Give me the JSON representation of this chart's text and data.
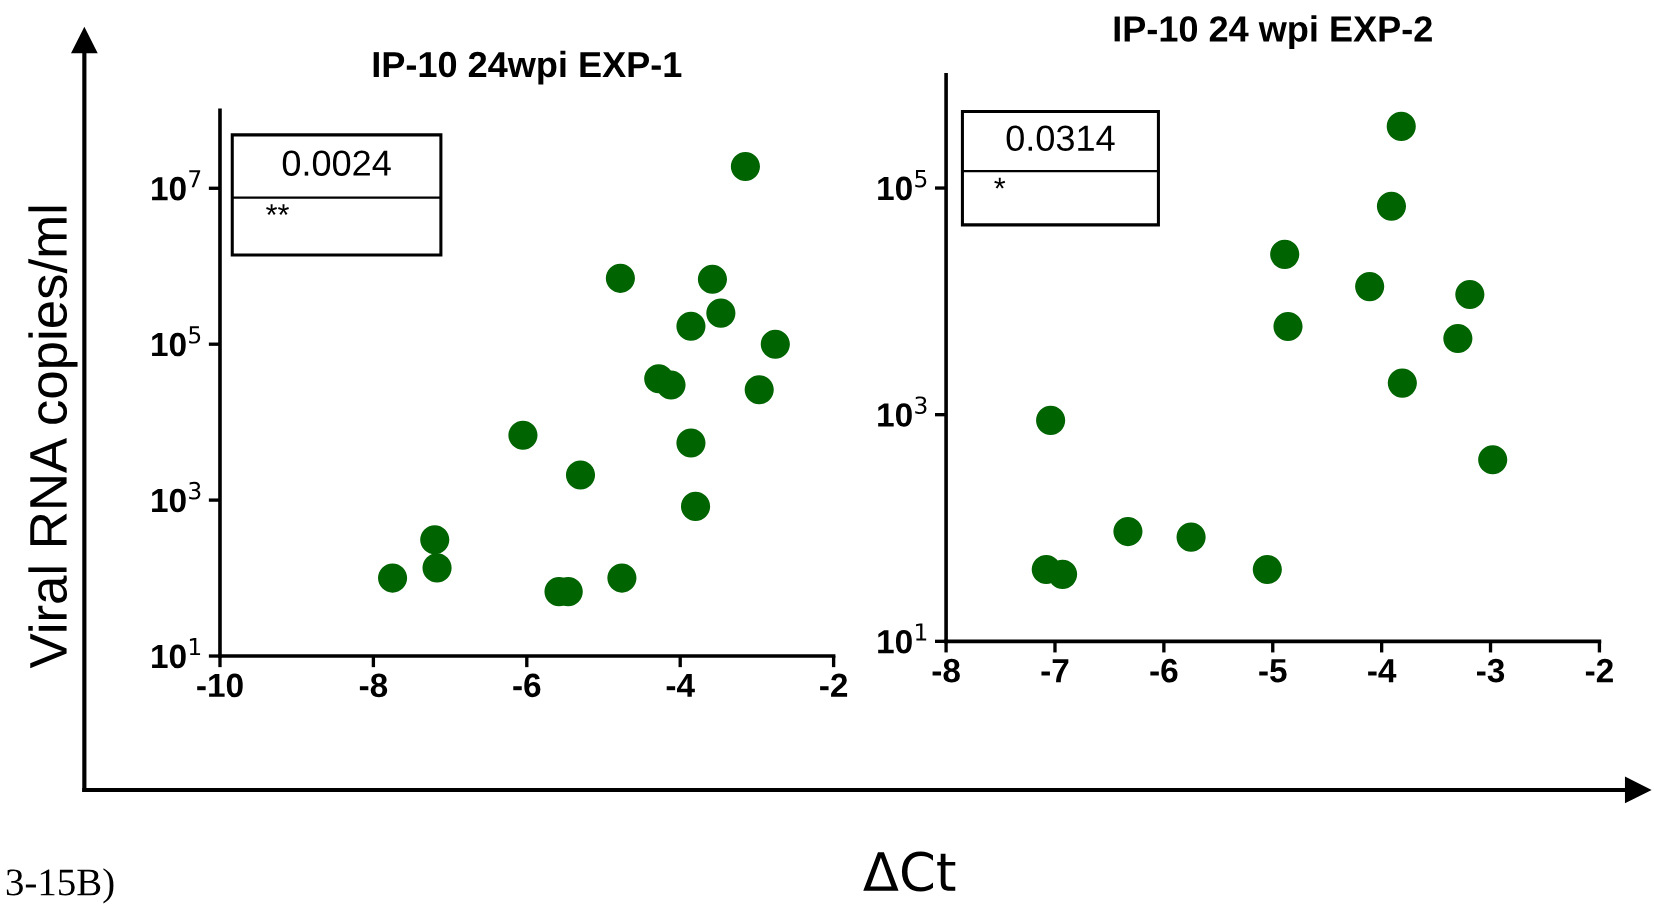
{
  "chart_data": [
    {
      "type": "scatter",
      "title": "IP-10 24wpi EXP-1",
      "ylabel": "Viral RNA copies/ml",
      "log": "y",
      "marker": "circle",
      "grid": false,
      "xlim": [
        -10,
        -2
      ],
      "xticks": [
        -10,
        -8,
        -6,
        -4,
        -2
      ],
      "ylim": [
        10,
        100000000
      ],
      "yticks": [
        {
          "value": 10,
          "label": "10$^{1}$"
        },
        {
          "value": 1000,
          "label": "10$^{3}$"
        },
        {
          "value": 100000,
          "label": "10$^{5}$"
        },
        {
          "value": 10000000,
          "label": "10$^{7}$"
        }
      ],
      "series": [
        {
          "color": "#006400",
          "x": [
            -3.15,
            -4.78,
            -3.58,
            -3.47,
            -3.86,
            -2.76,
            -4.28,
            -4.12,
            -2.97,
            -6.05,
            -3.86,
            -5.3,
            -3.8,
            -7.2,
            -7.17,
            -7.75,
            -5.58,
            -5.46,
            -4.76
          ],
          "values": [
            19000000,
            700000,
            680000,
            250000,
            170000,
            100000,
            36000,
            30000,
            26000,
            6800,
            5400,
            2100,
            830,
            310,
            135,
            100,
            67,
            67,
            100
          ]
        }
      ],
      "annotations": [
        "0.0024",
        "**",
        "3-15B)"
      ]
    },
    {
      "type": "scatter",
      "title": "IP-10 24 wpi EXP-2",
      "xlabel": "ΔCt",
      "log": "y",
      "marker": "circle",
      "grid": false,
      "xlim": [
        -8,
        -2
      ],
      "xticks": [
        -8,
        -7,
        -6,
        -5,
        -4,
        -3,
        -2
      ],
      "ylim": [
        10,
        1000000
      ],
      "yticks": [
        {
          "value": 10,
          "label": "10$^{1}$"
        },
        {
          "value": 1000,
          "label": "10$^{3}$"
        },
        {
          "value": 100000,
          "label": "10$^{5}$"
        }
      ],
      "series": [
        {
          "color": "#006400",
          "x": [
            -3.82,
            -3.91,
            -4.89,
            -4.11,
            -3.19,
            -4.86,
            -3.3,
            -3.81,
            -7.04,
            -2.98,
            -6.33,
            -5.75,
            -7.08,
            -6.93,
            -5.05
          ],
          "values": [
            350000,
            69000,
            26000,
            13500,
            11500,
            6000,
            4700,
            1900,
            890,
            400,
            93,
            83,
            43,
            39,
            43
          ]
        }
      ],
      "annotations": [
        "0.0314",
        "*"
      ]
    }
  ]
}
